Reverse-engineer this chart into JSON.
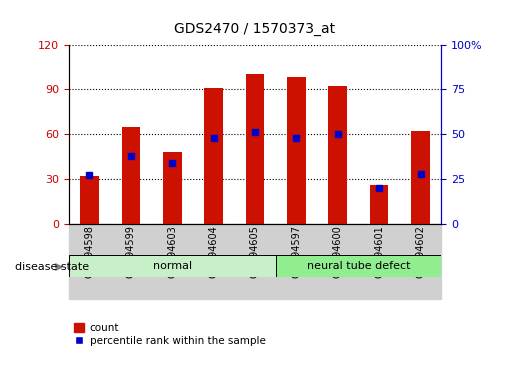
{
  "title": "GDS2470 / 1570373_at",
  "samples": [
    "GSM94598",
    "GSM94599",
    "GSM94603",
    "GSM94604",
    "GSM94605",
    "GSM94597",
    "GSM94600",
    "GSM94601",
    "GSM94602"
  ],
  "count_values": [
    32,
    65,
    48,
    91,
    100,
    98,
    92,
    26,
    62
  ],
  "percentile_values": [
    27,
    38,
    34,
    48,
    51,
    48,
    50,
    20,
    28
  ],
  "groups": [
    {
      "label": "normal",
      "start": 0,
      "end": 5,
      "color": "#c8f0c8"
    },
    {
      "label": "neural tube defect",
      "start": 5,
      "end": 9,
      "color": "#90ee90"
    }
  ],
  "left_axis_color": "#cc0000",
  "right_axis_color": "#0000cc",
  "left_ylim": [
    0,
    120
  ],
  "right_ylim": [
    0,
    100
  ],
  "left_yticks": [
    0,
    30,
    60,
    90,
    120
  ],
  "right_yticks": [
    0,
    25,
    50,
    75,
    100
  ],
  "bar_color": "#cc1100",
  "percentile_color": "#0000cc",
  "disease_state_label": "disease state",
  "legend_count": "count",
  "legend_percentile": "percentile rank within the sample"
}
